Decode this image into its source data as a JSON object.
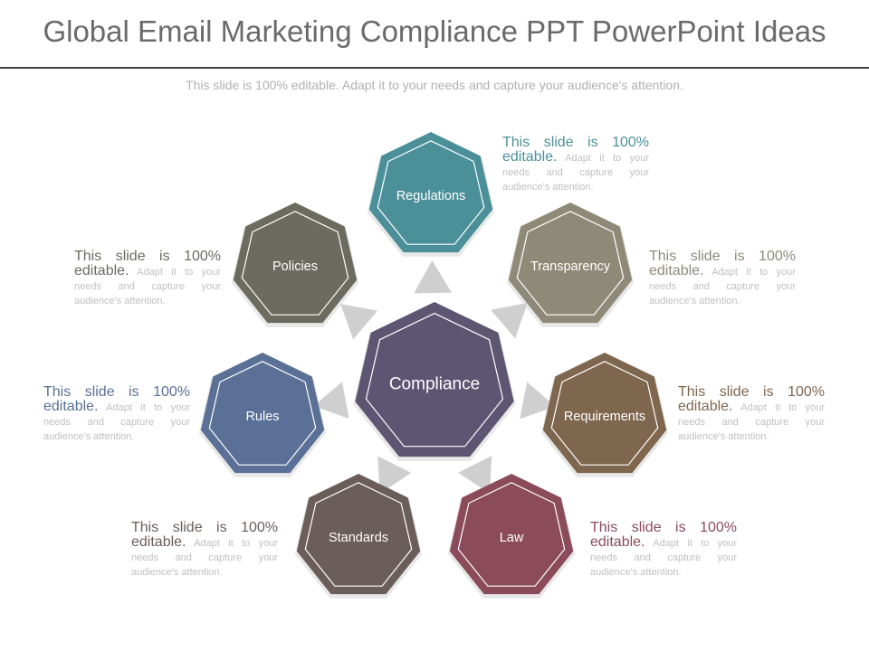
{
  "title": "Global Email Marketing Compliance PPT PowerPoint Ideas",
  "subtitle": "This slide is 100% editable. Adapt it to your needs and capture your audience's attention.",
  "center": {
    "label": "Compliance",
    "color": "#5d5672"
  },
  "nodes": [
    {
      "label": "Regulations",
      "color": "#4b9099",
      "text_big": "This slide is 100% editable.",
      "text_small": " Adapt it to your needs and capture your audience's attention."
    },
    {
      "label": "Transparency",
      "color": "#8f8a78",
      "text_big": "This slide is 100% editable.",
      "text_small": " Adapt it to your needs and capture your audience's attention."
    },
    {
      "label": "Requirements",
      "color": "#7f664f",
      "text_big": "This slide is 100% editable.",
      "text_small": " Adapt it to your needs and capture your audience's attention."
    },
    {
      "label": "Law",
      "color": "#8b4b5b",
      "text_big": "This slide is 100% editable.",
      "text_small": " Adapt it to your needs and capture your audience's attention."
    },
    {
      "label": "Standards",
      "color": "#6b5d59",
      "text_big": "This slide is 100% editable.",
      "text_small": " Adapt it to your needs and capture your audience's attention."
    },
    {
      "label": "Rules",
      "color": "#5b7096",
      "text_big": "This slide is 100% editable.",
      "text_small": " Adapt it to your needs and capture your audience's attention."
    },
    {
      "label": "Policies",
      "color": "#6b6b5f",
      "text_big": "This slide is 100% editable.",
      "text_small": " Adapt it to your needs and capture your audience's attention."
    }
  ]
}
